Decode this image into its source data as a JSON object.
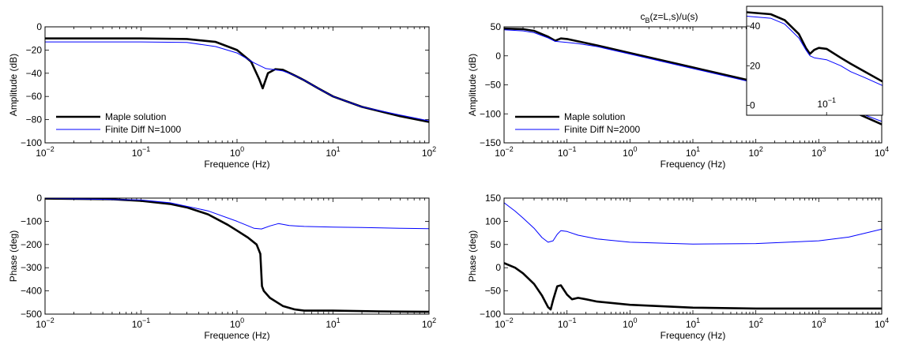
{
  "figure": {
    "colors": {
      "maple": "#000000",
      "finite_diff": "#0000ff",
      "axes": "#000000"
    }
  },
  "chart_data": [
    {
      "id": "left-amplitude",
      "type": "line",
      "title": "",
      "xlabel": "Frequence (Hz)",
      "ylabel": "Amplitude (dB)",
      "xscale": "log",
      "xlim": [
        0.01,
        100
      ],
      "ylim": [
        -100,
        0
      ],
      "yticks": [
        0,
        -20,
        -40,
        -60,
        -80,
        -100
      ],
      "ytick_labels": [
        "0",
        "−20",
        "−40",
        "−60",
        "−80",
        "−100"
      ],
      "xtick_labels": [
        [
          "10",
          "−2"
        ],
        [
          "10",
          "−1"
        ],
        [
          "10",
          "0"
        ],
        [
          "10",
          "1"
        ],
        [
          "10",
          "2"
        ]
      ],
      "legend": {
        "position": "lower-left",
        "entries": [
          "Maple solution",
          "Finite Diff N=1000"
        ]
      },
      "series": [
        {
          "name": "Maple solution",
          "color": "#000000",
          "width": "thick",
          "x": [
            0.01,
            0.1,
            0.3,
            0.6,
            1.0,
            1.4,
            1.7,
            1.85,
            2.1,
            2.5,
            3,
            4,
            5,
            7,
            10,
            20,
            50,
            100
          ],
          "y": [
            -10,
            -10,
            -10.5,
            -13,
            -20,
            -30,
            -45,
            -53,
            -40,
            -36.5,
            -37,
            -42,
            -46,
            -53,
            -60,
            -69,
            -77,
            -82
          ]
        },
        {
          "name": "Finite Diff N=1000",
          "color": "#0000ff",
          "width": "thin",
          "x": [
            0.01,
            0.1,
            0.3,
            0.6,
            1.0,
            1.5,
            2,
            2.5,
            3,
            4,
            5,
            7,
            10,
            20,
            50,
            100
          ],
          "y": [
            -13,
            -13,
            -13.5,
            -17,
            -22.5,
            -31,
            -36,
            -37,
            -38,
            -42,
            -46,
            -53,
            -60,
            -69,
            -76,
            -81
          ]
        }
      ]
    },
    {
      "id": "left-phase",
      "type": "line",
      "title": "",
      "xlabel": "Frequence (Hz)",
      "ylabel": "Phase (deg)",
      "xscale": "log",
      "xlim": [
        0.01,
        100
      ],
      "ylim": [
        -500,
        0
      ],
      "yticks": [
        0,
        -100,
        -200,
        -300,
        -400,
        -500
      ],
      "ytick_labels": [
        "0",
        "−100",
        "−200",
        "−300",
        "−400",
        "−500"
      ],
      "xtick_labels": [
        [
          "10",
          "−2"
        ],
        [
          "10",
          "−1"
        ],
        [
          "10",
          "0"
        ],
        [
          "10",
          "1"
        ],
        [
          "10",
          "2"
        ]
      ],
      "series": [
        {
          "name": "Maple solution",
          "color": "#000000",
          "width": "thick",
          "x": [
            0.01,
            0.05,
            0.1,
            0.2,
            0.3,
            0.5,
            0.8,
            1.0,
            1.3,
            1.6,
            1.75,
            1.82,
            1.9,
            2.2,
            3,
            4,
            5,
            10,
            30,
            100
          ],
          "y": [
            -2,
            -5,
            -12,
            -25,
            -40,
            -70,
            -115,
            -140,
            -170,
            -200,
            -240,
            -380,
            -400,
            -430,
            -465,
            -480,
            -485,
            -485,
            -488,
            -490
          ]
        },
        {
          "name": "Finite Diff N=1000",
          "color": "#0000ff",
          "width": "thin",
          "x": [
            0.01,
            0.1,
            0.2,
            0.5,
            1.0,
            1.5,
            1.8,
            2.2,
            2.7,
            3.5,
            5,
            10,
            20,
            50,
            100
          ],
          "y": [
            -1,
            -8,
            -20,
            -55,
            -100,
            -130,
            -133,
            -120,
            -110,
            -118,
            -122,
            -125,
            -127,
            -130,
            -132
          ]
        }
      ]
    },
    {
      "id": "right-amplitude",
      "type": "line",
      "title": "c_B(z=L,s)/u(s)",
      "title_parts": {
        "c": "c",
        "sub": "B",
        "rest": "(z=L,s)/u(s)"
      },
      "xlabel": "Frequency (Hz)",
      "ylabel": "Amplitude (dB)",
      "xscale": "log",
      "xlim": [
        0.01,
        10000
      ],
      "ylim": [
        -150,
        50
      ],
      "yticks": [
        50,
        0,
        -50,
        -100,
        -150
      ],
      "ytick_labels": [
        "50",
        "0",
        "−50",
        "−100",
        "−150"
      ],
      "xtick_labels": [
        [
          "10",
          "−2"
        ],
        [
          "10",
          "−1"
        ],
        [
          "10",
          "0"
        ],
        [
          "10",
          "1"
        ],
        [
          "10",
          "2"
        ],
        [
          "10",
          "3"
        ],
        [
          "10",
          "4"
        ]
      ],
      "legend": {
        "position": "lower-left",
        "entries": [
          "Maple solution",
          "Finite Diff N=2000"
        ]
      },
      "series": [
        {
          "name": "Maple solution",
          "color": "#000000",
          "width": "thick",
          "x": [
            0.01,
            0.02,
            0.03,
            0.05,
            0.065,
            0.08,
            0.1,
            0.15,
            0.3,
            1,
            10,
            100,
            1000,
            10000
          ],
          "y": [
            47,
            46,
            43,
            33,
            26,
            30,
            29,
            25,
            18,
            5,
            -20,
            -45,
            -70,
            -118
          ]
        },
        {
          "name": "Finite Diff N=2000",
          "color": "#0000ff",
          "width": "thin",
          "x": [
            0.01,
            0.02,
            0.03,
            0.05,
            0.065,
            0.1,
            0.15,
            0.3,
            1,
            10,
            100,
            1000,
            10000
          ],
          "y": [
            45,
            43,
            40,
            31,
            25,
            23,
            21,
            16,
            3,
            -22,
            -47,
            -72,
            -113
          ]
        }
      ],
      "inset": {
        "xscale": "log",
        "xlim": [
          0.01,
          0.5
        ],
        "ylim": [
          -5,
          50
        ],
        "yticks": [
          40,
          20,
          0
        ],
        "ytick_labels": [
          "40",
          "20",
          "0"
        ],
        "xtick_labels": [
          [
            "10",
            "−1"
          ]
        ],
        "series": [
          {
            "name": "Maple solution",
            "color": "#000000",
            "width": "thick",
            "x": [
              0.01,
              0.02,
              0.03,
              0.045,
              0.055,
              0.062,
              0.07,
              0.08,
              0.1,
              0.15,
              0.2,
              0.3,
              0.5
            ],
            "y": [
              47,
              46,
              43,
              36,
              29,
              26,
              28,
              29,
              28.5,
              24,
              21,
              17,
              12
            ]
          },
          {
            "name": "Finite Diff N=2000",
            "color": "#0000ff",
            "width": "thin",
            "x": [
              0.01,
              0.02,
              0.03,
              0.045,
              0.055,
              0.062,
              0.07,
              0.1,
              0.15,
              0.2,
              0.3,
              0.5
            ],
            "y": [
              45,
              44,
              41,
              34,
              28,
              25,
              24,
              23,
              20,
              17,
              14,
              10
            ]
          }
        ]
      }
    },
    {
      "id": "right-phase",
      "type": "line",
      "title": "",
      "xlabel": "Frequency (Hz)",
      "ylabel": "Phase (deg)",
      "xscale": "log",
      "xlim": [
        0.01,
        10000
      ],
      "ylim": [
        -100,
        150
      ],
      "yticks": [
        150,
        100,
        50,
        0,
        -50,
        -100
      ],
      "ytick_labels": [
        "150",
        "100",
        "50",
        "0",
        "−50",
        "−100"
      ],
      "xtick_labels": [
        [
          "10",
          "−2"
        ],
        [
          "10",
          "−1"
        ],
        [
          "10",
          "0"
        ],
        [
          "10",
          "1"
        ],
        [
          "10",
          "2"
        ],
        [
          "10",
          "3"
        ],
        [
          "10",
          "4"
        ]
      ],
      "series": [
        {
          "name": "Maple solution",
          "color": "#000000",
          "width": "thick",
          "x": [
            0.01,
            0.015,
            0.02,
            0.03,
            0.04,
            0.05,
            0.055,
            0.06,
            0.07,
            0.08,
            0.1,
            0.12,
            0.15,
            0.2,
            0.3,
            1,
            10,
            100,
            1000,
            10000
          ],
          "y": [
            10,
            0,
            -12,
            -35,
            -60,
            -85,
            -90,
            -70,
            -40,
            -38,
            -58,
            -68,
            -65,
            -68,
            -73,
            -80,
            -86,
            -88,
            -88,
            -88
          ]
        },
        {
          "name": "Finite Diff N=2000",
          "color": "#0000ff",
          "width": "thin",
          "x": [
            0.01,
            0.015,
            0.02,
            0.03,
            0.04,
            0.05,
            0.06,
            0.07,
            0.08,
            0.1,
            0.15,
            0.3,
            1,
            10,
            100,
            1000,
            3000,
            10000
          ],
          "y": [
            140,
            122,
            107,
            85,
            65,
            55,
            58,
            72,
            80,
            78,
            70,
            62,
            55,
            51,
            52,
            58,
            66,
            83
          ]
        }
      ]
    }
  ]
}
